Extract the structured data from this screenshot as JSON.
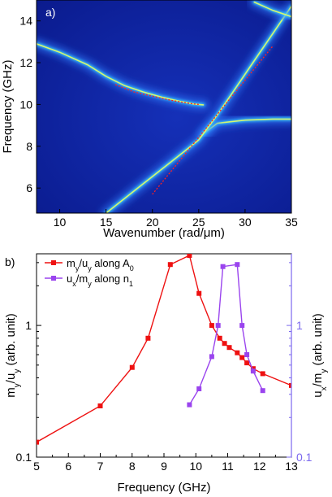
{
  "chart_data": [
    {
      "type": "heatmap",
      "panel_label": "a)",
      "xlabel": "Wavenumber (rad/μm)",
      "ylabel": "Frequency (GHz)",
      "xlim": [
        7.5,
        35
      ],
      "ylim": [
        4.8,
        15
      ],
      "xticks": [
        "10",
        "15",
        "20",
        "25",
        "30",
        "35"
      ],
      "yticks": [
        "6",
        "8",
        "10",
        "12",
        "14"
      ],
      "colors": {
        "background": "#0a1a8c",
        "branch_glow": "#2f7dff",
        "branch_core": "#e8ff60",
        "fit_line": "#ff2020"
      },
      "branches": [
        {
          "x": [
            7.5,
            10,
            13,
            15,
            17,
            19,
            21,
            23,
            24.5,
            25.5
          ],
          "y": [
            12.9,
            12.5,
            11.9,
            11.35,
            10.9,
            10.6,
            10.35,
            10.15,
            10.02,
            9.98
          ]
        },
        {
          "x": [
            25.5,
            27,
            30,
            33,
            35
          ],
          "y": [
            8.6,
            9.1,
            9.25,
            9.3,
            9.3
          ]
        },
        {
          "x": [
            15,
            17,
            19,
            21,
            23,
            25,
            27,
            29,
            31,
            33,
            35
          ],
          "y": [
            4.8,
            5.5,
            6.2,
            6.9,
            7.6,
            8.3,
            9.5,
            10.8,
            12.1,
            13.4,
            14.7
          ]
        },
        {
          "x": [
            31,
            33,
            35
          ],
          "y": [
            14.9,
            14.5,
            14.2
          ]
        }
      ],
      "fits": [
        {
          "x": [
            16,
            18,
            20,
            22,
            24,
            25
          ],
          "y": [
            10.95,
            10.6,
            10.4,
            10.2,
            10.05,
            10.0
          ]
        },
        {
          "x": [
            20,
            33
          ],
          "y": [
            5.7,
            12.8
          ]
        }
      ]
    },
    {
      "type": "line",
      "panel_label": "b)",
      "xlabel": "Frequency (GHz)",
      "ylabel_left": "m_y/u_y (arb. unit)",
      "ylabel_right": "u_x/m_y (arb. unit)",
      "xlim": [
        5,
        13
      ],
      "ylim": [
        0.1,
        3.5
      ],
      "yscale": "log",
      "xticks": [
        "5",
        "6",
        "7",
        "8",
        "9",
        "10",
        "11",
        "12",
        "13"
      ],
      "yticks_left": [
        "0.1",
        "1"
      ],
      "yticks_right": [
        "0.1",
        "1"
      ],
      "legend_position": "top-left",
      "series": [
        {
          "name": "my/uy along A0",
          "color": "#ee1111",
          "marker": "square",
          "x": [
            5,
            7,
            8,
            8.5,
            9.2,
            9.8,
            10.1,
            10.5,
            10.75,
            10.9,
            11.05,
            11.3,
            11.45,
            11.6,
            11.8,
            12.1,
            13
          ],
          "y": [
            0.13,
            0.245,
            0.48,
            0.8,
            2.9,
            3.4,
            1.75,
            1.0,
            0.8,
            0.73,
            0.68,
            0.62,
            0.57,
            0.52,
            0.47,
            0.43,
            0.35
          ]
        },
        {
          "name": "ux/my along n1",
          "color": "#9a44ee",
          "marker": "square",
          "x": [
            9.8,
            10.1,
            10.5,
            10.7,
            10.85,
            11.3,
            11.45,
            11.6,
            11.8,
            12.1
          ],
          "y": [
            0.25,
            0.33,
            0.58,
            1.0,
            2.8,
            2.9,
            1.0,
            0.6,
            0.45,
            0.32
          ]
        }
      ]
    }
  ]
}
